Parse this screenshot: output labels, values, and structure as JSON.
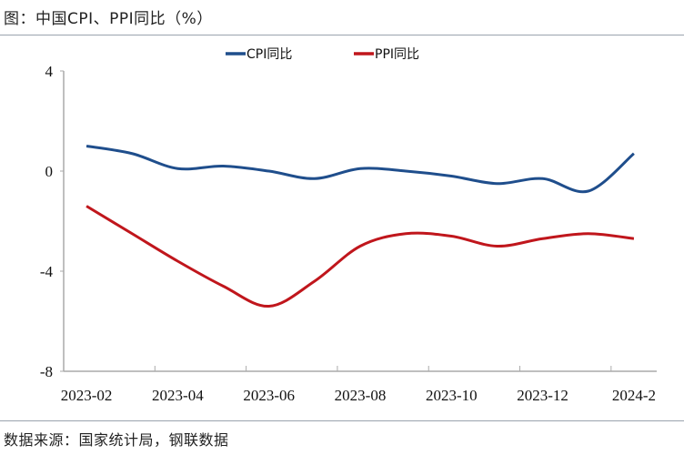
{
  "title": "图：中国CPI、PPI同比（%）",
  "source": "数据来源：国家统计局，钢联数据",
  "chart_data": {
    "type": "line",
    "title": "图：中国CPI、PPI同比（%）",
    "xlabel": "",
    "ylabel": "",
    "categories": [
      "2023-02",
      "2023-03",
      "2023-04",
      "2023-05",
      "2023-06",
      "2023-07",
      "2023-08",
      "2023-09",
      "2023-10",
      "2023-11",
      "2023-12",
      "2024-01",
      "2024-02"
    ],
    "tick_labels": [
      "2023-02",
      "2023-04",
      "2023-06",
      "2023-08",
      "2023-10",
      "2023-12",
      "2024-2"
    ],
    "yticks": [
      4,
      0,
      -4,
      -8
    ],
    "ylim": [
      -8,
      4
    ],
    "grid": false,
    "legend_position": "top-center",
    "series": [
      {
        "name": "CPI同比",
        "color": "#1f4e8c",
        "values": [
          1.0,
          0.7,
          0.1,
          0.2,
          0.0,
          -0.3,
          0.1,
          0.0,
          -0.2,
          -0.5,
          -0.3,
          -0.8,
          0.7
        ]
      },
      {
        "name": "PPI同比",
        "color": "#c0161c",
        "values": [
          -1.4,
          -2.5,
          -3.6,
          -4.6,
          -5.4,
          -4.4,
          -3.0,
          -2.5,
          -2.6,
          -3.0,
          -2.7,
          -2.5,
          -2.7
        ]
      }
    ]
  }
}
